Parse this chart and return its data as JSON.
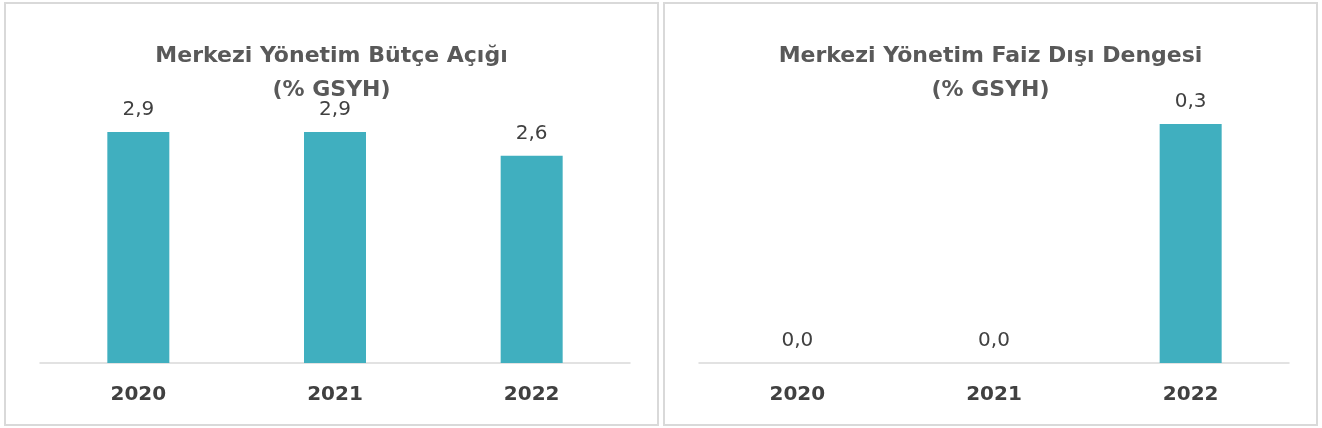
{
  "chart_data": [
    {
      "type": "bar",
      "title": "Merkezi Yönetim Bütçe Açığı\n(% GSYH)",
      "categories": [
        "2020",
        "2021",
        "2022"
      ],
      "values": [
        2.9,
        2.9,
        2.6
      ],
      "value_labels": [
        "2,9",
        "2,9",
        "2,6"
      ],
      "color": "#40afbf",
      "tick_labels": "x"
    },
    {
      "type": "bar",
      "title": "Merkezi Yönetim Faiz Dışı Dengesi\n(% GSYH)",
      "categories": [
        "2020",
        "2021",
        "2022"
      ],
      "values": [
        0.0,
        0.0,
        0.3
      ],
      "value_labels": [
        "0,0",
        "0,0",
        "0,3"
      ],
      "color": "#40afbf",
      "tick_labels": "x"
    }
  ]
}
